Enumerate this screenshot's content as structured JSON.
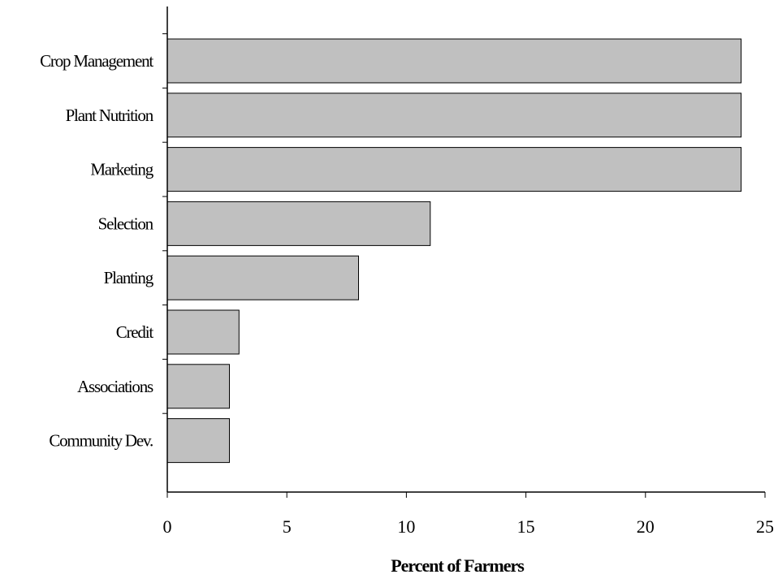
{
  "chart_data": {
    "type": "bar",
    "orientation": "horizontal",
    "categories": [
      "Crop Management",
      "Plant Nutrition",
      "Marketing",
      "Selection",
      "Planting",
      "Credit",
      "Associations",
      "Community Dev."
    ],
    "values": [
      24,
      24,
      24,
      11,
      8,
      3,
      2.6,
      2.6
    ],
    "xlabel": "Percent of Farmers",
    "ylabel": "",
    "title": "",
    "xlim": [
      0,
      25
    ],
    "xticks": [
      0,
      5,
      10,
      15,
      20,
      25
    ],
    "xtick_labels": [
      "0",
      "5",
      "10",
      "15",
      "20",
      "25"
    ],
    "grid": false,
    "legend": "none",
    "colors": {
      "bar_fill": "#c0c0c0",
      "bar_stroke": "#000000",
      "axis": "#000000"
    }
  }
}
